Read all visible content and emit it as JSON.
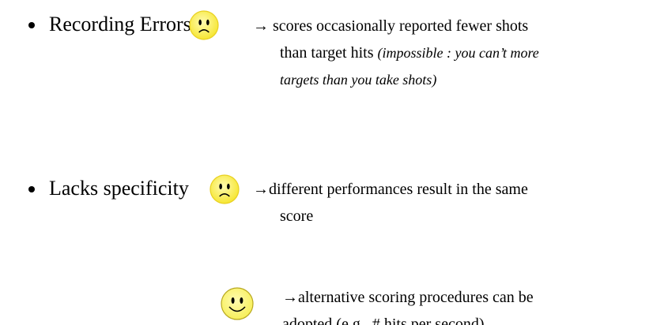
{
  "items": [
    {
      "label": "Recording Errors",
      "face": "sad",
      "notes": [
        {
          "lines": [
            [
              {
                "text": "→ scores occasionally reported fewer shots"
              }
            ],
            [
              {
                "text": "than target hits "
              },
              {
                "text": "(impossible : you can’t more",
                "italic": true
              }
            ],
            [
              {
                "text": "targets than you take shots)",
                "italic": true
              }
            ]
          ]
        }
      ]
    },
    {
      "label": "Lacks specificity",
      "face": "sad",
      "notes": [
        {
          "lines": [
            [
              {
                "text": "→different performances result in the same"
              }
            ],
            [
              {
                "text": "score"
              }
            ]
          ]
        },
        {
          "face": "happy",
          "lines": [
            [
              {
                "text": "→alternative scoring procedures can be"
              }
            ],
            [
              {
                "text": "adopted (e.g., # hits per second)"
              }
            ]
          ]
        }
      ]
    }
  ]
}
